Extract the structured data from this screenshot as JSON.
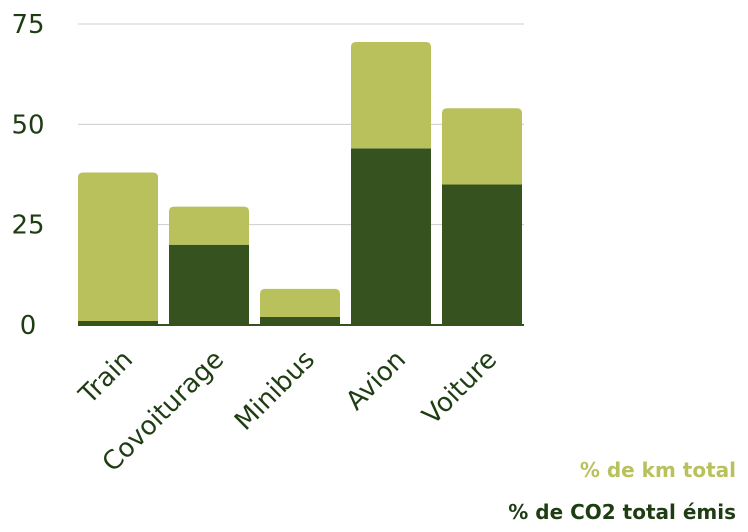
{
  "chart_data": {
    "type": "bar",
    "stacked": true,
    "categories": [
      "Train",
      "Covoiturage",
      "Minibus",
      "Avion",
      "Voiture"
    ],
    "series": [
      {
        "name": "% de CO2 total émis",
        "color": "#35521f",
        "values": [
          1,
          20,
          2,
          44,
          35
        ]
      },
      {
        "name": "% de km total",
        "color": "#b9c15d",
        "values": [
          37,
          9.5,
          7,
          26.5,
          19
        ]
      }
    ],
    "yticks": [
      0,
      25,
      50,
      75
    ],
    "ylim": [
      0,
      75
    ],
    "grid": true,
    "legend": "bottom-right",
    "colors": {
      "text": "#1f3d13",
      "grid": "#cccccc",
      "axis": "#35521f"
    }
  }
}
